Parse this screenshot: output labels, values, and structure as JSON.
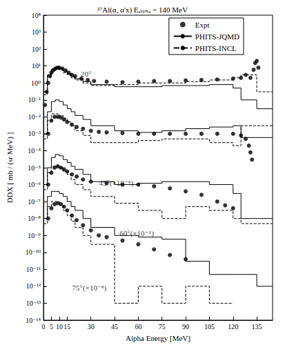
{
  "chart_data": {
    "type": "line",
    "title": "²⁷Al(α, α'x) Eₐₗₚₕₐ = 140 MeV",
    "x_label": "Alpha Energy [MeV]",
    "y_label": "DDX [ mb / (sr MeV) ]",
    "log": "y",
    "grid": false,
    "legend": "top-right",
    "xlim": [
      0,
      145
    ],
    "xticks": [
      0,
      5,
      10,
      15,
      30,
      45,
      60,
      75,
      90,
      105,
      120,
      135
    ],
    "ylim": [
      1e-14,
      10000
    ],
    "yticks": [
      {
        "value": 1e-14,
        "label": "10⁻¹⁴"
      },
      {
        "value": 1e-13,
        "label": "10⁻¹³"
      },
      {
        "value": 1e-12,
        "label": "10⁻¹²"
      },
      {
        "value": 1e-11,
        "label": "10⁻¹¹"
      },
      {
        "value": 1e-10,
        "label": "10⁻¹⁰"
      },
      {
        "value": 1e-09,
        "label": "10⁻⁹"
      },
      {
        "value": 1e-08,
        "label": "10⁻⁸"
      },
      {
        "value": 1e-07,
        "label": "10⁻⁷"
      },
      {
        "value": 1e-06,
        "label": "10⁻⁶"
      },
      {
        "value": 1e-05,
        "label": "10⁻⁵"
      },
      {
        "value": 0.0001,
        "label": "10⁻⁴"
      },
      {
        "value": 0.001,
        "label": "10⁻³"
      },
      {
        "value": 0.01,
        "label": "10⁻²"
      },
      {
        "value": 0.1,
        "label": "10⁻¹"
      },
      {
        "value": 1,
        "label": "10⁰"
      },
      {
        "value": 10,
        "label": "10¹"
      },
      {
        "value": 100,
        "label": "10²"
      },
      {
        "value": 1000,
        "label": "10³"
      },
      {
        "value": 10000,
        "label": "10⁴"
      }
    ],
    "annotations": [
      {
        "text": "20°",
        "x": 27,
        "y": 3.5
      },
      {
        "text": "45°(×10⁻⁴)",
        "x": 46,
        "y": 1.3e-06
      },
      {
        "text": "60°(×10⁻⁶)",
        "x": 59,
        "y": 1.3e-09
      },
      {
        "text": "75°(×10⁻⁸)",
        "x": 29,
        "y": 8e-13
      }
    ],
    "series": [
      {
        "name": "Expt",
        "type": "scatter",
        "marker": "circle",
        "color": "#000000",
        "x": [
          1,
          2,
          3,
          4,
          5,
          6,
          7,
          8,
          9,
          10,
          12,
          14,
          16,
          18,
          20,
          24,
          28,
          32,
          40,
          50,
          60,
          70,
          80,
          90,
          100,
          110,
          120,
          125,
          128,
          131,
          133,
          134,
          135,
          136
        ],
        "values": [
          0.05,
          0.3,
          1,
          2.5,
          4,
          5.5,
          6.5,
          7.5,
          8,
          8,
          7,
          5.5,
          4,
          3,
          2.5,
          1.8,
          1.5,
          1.3,
          1.2,
          1.1,
          1.2,
          1.3,
          1.3,
          1.4,
          1.5,
          1.6,
          1.8,
          2,
          3,
          2,
          6,
          15,
          20,
          8
        ]
      },
      {
        "name": "PHITS-JQMD",
        "type": "step",
        "line_style": "solid",
        "color": "#000000",
        "x": [
          0,
          2.5,
          5,
          7.5,
          10,
          12.5,
          15,
          17.5,
          20,
          25,
          30,
          45,
          60,
          75,
          90,
          105,
          120,
          125,
          135,
          145
        ],
        "values": [
          0.3,
          3,
          6,
          8,
          7,
          5,
          3.5,
          2.5,
          1.8,
          1.2,
          0.8,
          0.6,
          0.6,
          0.7,
          0.7,
          0.8,
          0.5,
          0.1,
          0.03,
          0.03
        ]
      },
      {
        "name": "PHITS-INCL",
        "type": "step",
        "line_style": "dashed",
        "color": "#000000",
        "x": [
          0,
          2.5,
          5,
          7.5,
          10,
          12.5,
          15,
          17.5,
          20,
          25,
          30,
          45,
          60,
          75,
          90,
          105,
          120,
          125,
          135,
          145
        ],
        "values": [
          0.2,
          2.5,
          6,
          7,
          6,
          4,
          3,
          2,
          1.5,
          1,
          0.7,
          0.8,
          1,
          1,
          1.2,
          1.5,
          2,
          3,
          0.3,
          0.3
        ]
      },
      {
        "name": "Expt",
        "type": "scatter",
        "marker": "circle",
        "color": "#000000",
        "x": [
          3,
          5,
          7,
          9,
          11,
          13,
          15,
          18,
          21,
          25,
          30,
          35,
          40,
          50,
          60,
          70,
          80,
          90,
          100,
          110,
          120,
          125,
          128,
          130,
          131,
          132
        ],
        "values": [
          0.001,
          0.006,
          0.01,
          0.01,
          0.009,
          0.007,
          0.005,
          0.0035,
          0.0025,
          0.002,
          0.0015,
          0.0013,
          0.0012,
          0.0011,
          0.001,
          0.001,
          0.001,
          0.001,
          0.001,
          0.001,
          0.001,
          0.0008,
          0.0005,
          0.0002,
          8e-05,
          3e-05
        ]
      },
      {
        "name": "PHITS-JQMD",
        "type": "step",
        "line_style": "solid",
        "color": "#000000",
        "x": [
          0,
          2.5,
          5,
          7.5,
          10,
          12.5,
          15,
          17.5,
          20,
          25,
          30,
          45,
          60,
          75,
          90,
          105,
          120,
          125,
          135,
          145
        ],
        "values": [
          0.001,
          0.02,
          0.08,
          0.1,
          0.08,
          0.05,
          0.03,
          0.02,
          0.012,
          0.007,
          0.003,
          0.0015,
          0.0012,
          0.0015,
          0.002,
          0.0025,
          0.003,
          0.0006,
          0.0006,
          0.0006
        ]
      },
      {
        "name": "PHITS-INCL",
        "type": "step",
        "line_style": "dashed",
        "color": "#000000",
        "x": [
          0,
          2.5,
          5,
          7.5,
          10,
          12.5,
          15,
          17.5,
          20,
          25,
          30,
          45,
          60,
          75,
          90,
          105,
          120,
          125,
          135,
          145
        ],
        "values": [
          0.0005,
          0.006,
          0.015,
          0.015,
          0.012,
          0.008,
          0.005,
          0.003,
          0.0015,
          0.0008,
          0.0003,
          0.0003,
          0.0004,
          0.0005,
          0.0005,
          0.0003,
          0.0002,
          0.003,
          0.003,
          0.003
        ]
      },
      {
        "name": "Expt",
        "type": "scatter",
        "marker": "circle",
        "color": "#000000",
        "x": [
          3,
          5,
          7,
          9,
          11,
          13,
          15,
          18,
          21,
          25,
          30,
          40,
          50,
          60,
          70,
          80,
          90,
          100,
          110,
          115,
          120
        ],
        "values": [
          1e-06,
          5e-06,
          1e-05,
          1.2e-05,
          1e-05,
          8e-06,
          6e-06,
          4e-06,
          3e-06,
          2e-06,
          1.5e-06,
          1.2e-06,
          1e-06,
          1e-06,
          8e-07,
          6e-07,
          4e-07,
          2.5e-07,
          1e-07,
          6e-08,
          4e-08
        ]
      },
      {
        "name": "PHITS-JQMD",
        "type": "step",
        "line_style": "solid",
        "color": "#000000",
        "x": [
          0,
          2.5,
          5,
          7.5,
          10,
          12.5,
          15,
          17.5,
          20,
          25,
          30,
          45,
          60,
          75,
          90,
          105,
          120,
          125,
          135,
          145
        ],
        "values": [
          1e-06,
          1e-05,
          4e-05,
          6e-05,
          5e-05,
          3e-05,
          2e-05,
          1.2e-05,
          8e-06,
          4e-06,
          1.5e-06,
          1e-06,
          1.2e-06,
          1.5e-06,
          1.5e-06,
          1e-06,
          3e-07,
          1e-08,
          1e-08,
          1e-08
        ]
      },
      {
        "name": "PHITS-INCL",
        "type": "step",
        "line_style": "dashed",
        "color": "#000000",
        "x": [
          0,
          2.5,
          5,
          7.5,
          10,
          12.5,
          15,
          17.5,
          20,
          25,
          30,
          45,
          60,
          75,
          90,
          105,
          120,
          125,
          135,
          145
        ],
        "values": [
          5e-07,
          5e-06,
          1.2e-05,
          1.2e-05,
          1e-05,
          6e-06,
          4e-06,
          2e-06,
          1e-06,
          5e-07,
          2e-07,
          8e-08,
          3e-08,
          1e-08,
          5e-08,
          3e-08,
          1e-08,
          5e-09,
          5e-09,
          5e-09
        ]
      },
      {
        "name": "Expt",
        "type": "scatter",
        "marker": "circle",
        "color": "#000000",
        "x": [
          3,
          5,
          7,
          9,
          11,
          13,
          15,
          18,
          21,
          25,
          30,
          35,
          40,
          50,
          60,
          70,
          80,
          90
        ],
        "values": [
          1e-08,
          4e-08,
          7e-08,
          8e-08,
          7e-08,
          5e-08,
          3e-08,
          1.5e-08,
          8e-09,
          4e-09,
          2e-09,
          1e-09,
          8e-10,
          5e-10,
          3e-10,
          1.5e-10,
          7e-11,
          4e-11
        ]
      },
      {
        "name": "PHITS-JQMD",
        "type": "step",
        "line_style": "solid",
        "color": "#000000",
        "x": [
          0,
          2.5,
          5,
          7.5,
          10,
          12.5,
          15,
          17.5,
          20,
          25,
          30,
          45,
          60,
          75,
          90,
          105,
          120,
          125,
          135,
          145
        ],
        "values": [
          1e-08,
          2e-07,
          4e-07,
          4e-07,
          3e-07,
          2e-07,
          1e-07,
          5e-08,
          3e-08,
          1e-08,
          3e-09,
          1e-09,
          8e-10,
          6e-10,
          3e-11,
          5e-12,
          5e-12,
          5e-12,
          1e-12,
          1e-12
        ]
      },
      {
        "name": "PHITS-INCL",
        "type": "step",
        "line_style": "dashed",
        "color": "#000000",
        "x": [
          0,
          2.5,
          5,
          7.5,
          10,
          12.5,
          15,
          17.5,
          20,
          25,
          30,
          45,
          60,
          75,
          90,
          105,
          120,
          125,
          135,
          145
        ],
        "values": [
          5e-09,
          5e-08,
          1e-07,
          1e-07,
          6e-08,
          3e-08,
          1.5e-08,
          7e-09,
          3e-09,
          1e-09,
          3e-10,
          1e-13,
          1e-12,
          1e-13,
          1e-12,
          1e-13,
          null,
          null,
          null,
          null
        ]
      }
    ]
  }
}
